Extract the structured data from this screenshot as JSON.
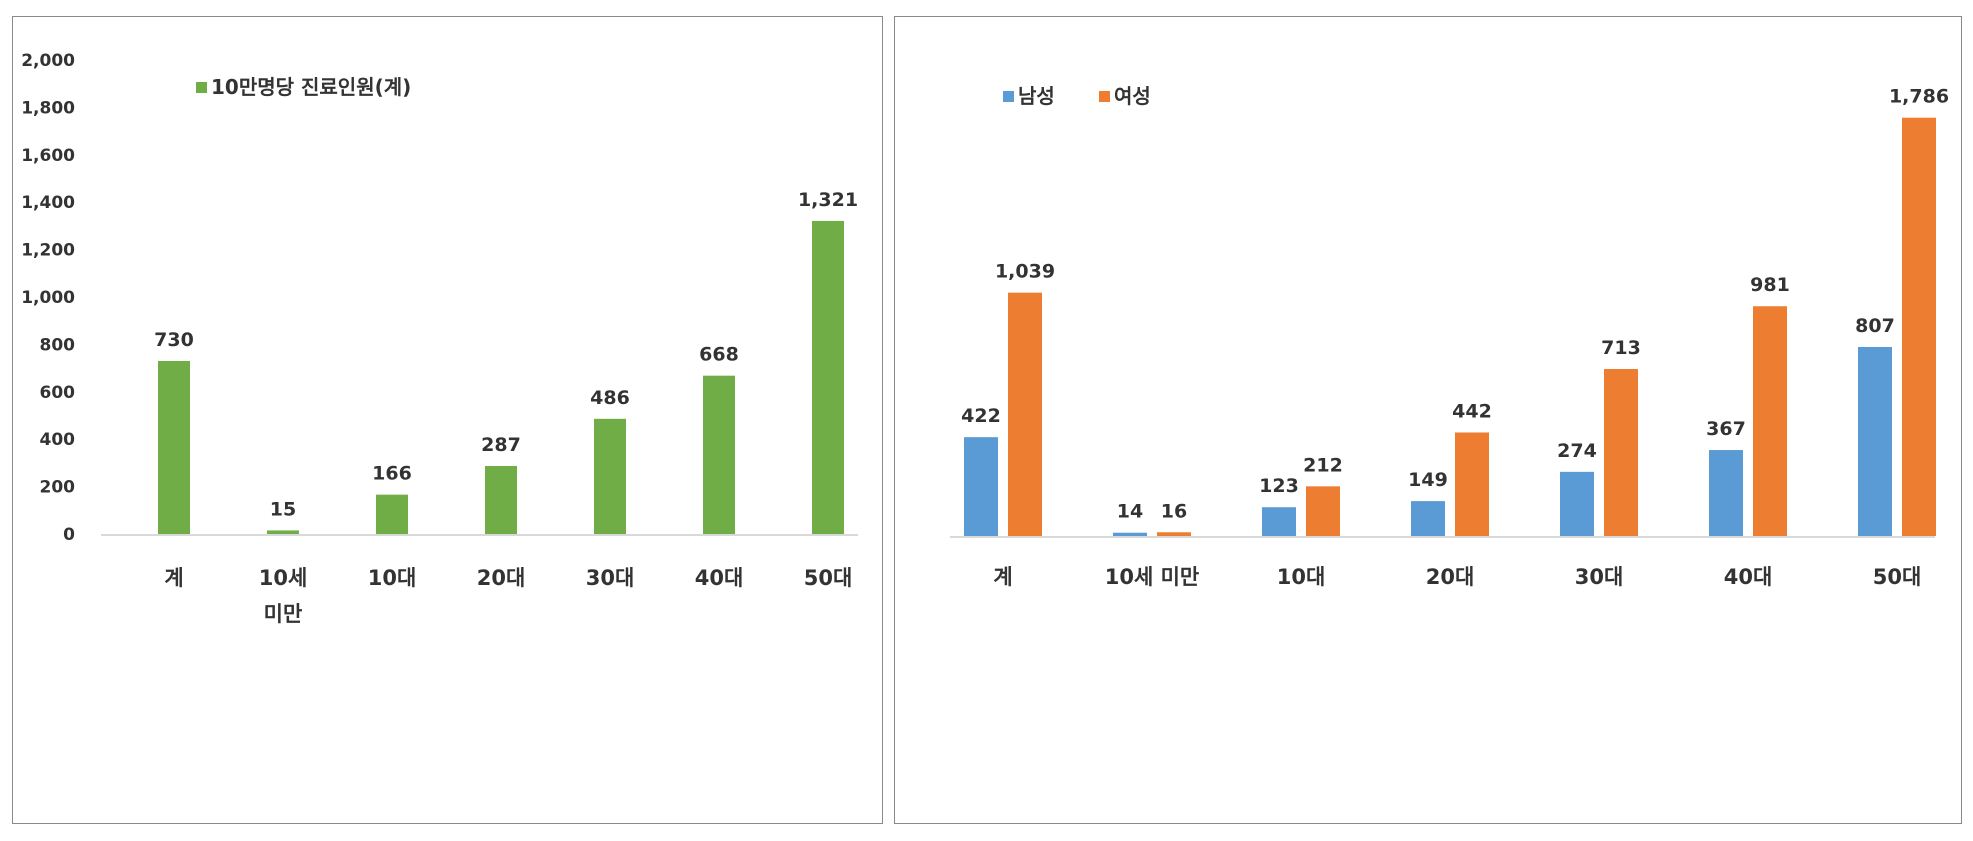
{
  "chart_data": [
    {
      "type": "bar",
      "categories": [
        "계",
        "10세\n미만",
        "10대",
        "20대",
        "30대",
        "40대",
        "50대"
      ],
      "series": [
        {
          "name": "10만명당 진료인원(계)",
          "values": [
            730,
            15,
            166,
            287,
            486,
            668,
            1321
          ],
          "color": "#70ad47"
        }
      ],
      "yticks": [
        "2,000",
        "1,800",
        "1,600",
        "1,400",
        "1,200",
        "1,000",
        "800",
        "600",
        "400",
        "200",
        "0"
      ],
      "data_labels": [
        [
          "730",
          "15",
          "166",
          "287",
          "486",
          "668",
          "1,321"
        ]
      ],
      "ylim": [
        0,
        2000
      ],
      "grid": false,
      "legend": "top-left"
    },
    {
      "type": "bar",
      "categories": [
        "계",
        "10세 미만",
        "10대",
        "20대",
        "30대",
        "40대",
        "50대"
      ],
      "series": [
        {
          "name": "남성",
          "values": [
            422,
            14,
            123,
            149,
            274,
            367,
            807
          ],
          "color": "#5b9bd5"
        },
        {
          "name": "여성",
          "values": [
            1039,
            16,
            212,
            442,
            713,
            981,
            1786
          ],
          "color": "#ed7d31"
        }
      ],
      "data_labels": [
        [
          "422",
          "14",
          "123",
          "149",
          "274",
          "367",
          "807"
        ],
        [
          "1,039",
          "16",
          "212",
          "442",
          "713",
          "981",
          "1,786"
        ]
      ],
      "ylim": [
        0,
        1900
      ],
      "grid": false,
      "legend": "top-left"
    }
  ]
}
